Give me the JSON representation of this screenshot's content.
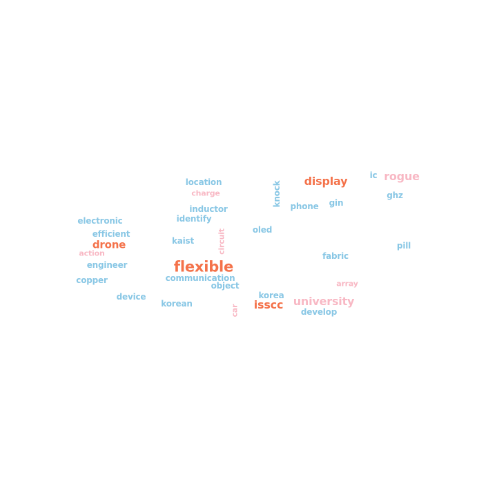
{
  "colors": {
    "orange": "#f4724a",
    "blue": "#89c7e5",
    "pink": "#f8b8c4"
  },
  "words": [
    {
      "text": "flexible",
      "color": "orange"
    },
    {
      "text": "display",
      "color": "orange"
    },
    {
      "text": "drone",
      "color": "orange"
    },
    {
      "text": "isscc",
      "color": "orange"
    },
    {
      "text": "university",
      "color": "pink"
    },
    {
      "text": "rogue",
      "color": "pink"
    },
    {
      "text": "charge",
      "color": "pink"
    },
    {
      "text": "action",
      "color": "pink"
    },
    {
      "text": "circuit",
      "color": "pink"
    },
    {
      "text": "array",
      "color": "pink"
    },
    {
      "text": "car",
      "color": "pink"
    },
    {
      "text": "location",
      "color": "blue"
    },
    {
      "text": "inductor",
      "color": "blue"
    },
    {
      "text": "identify",
      "color": "blue"
    },
    {
      "text": "electronic",
      "color": "blue"
    },
    {
      "text": "efficient",
      "color": "blue"
    },
    {
      "text": "kaist",
      "color": "blue"
    },
    {
      "text": "engineer",
      "color": "blue"
    },
    {
      "text": "copper",
      "color": "blue"
    },
    {
      "text": "communication",
      "color": "blue"
    },
    {
      "text": "object",
      "color": "blue"
    },
    {
      "text": "device",
      "color": "blue"
    },
    {
      "text": "korean",
      "color": "blue"
    },
    {
      "text": "knock",
      "color": "blue"
    },
    {
      "text": "phone",
      "color": "blue"
    },
    {
      "text": "gin",
      "color": "blue"
    },
    {
      "text": "ic",
      "color": "blue"
    },
    {
      "text": "ghz",
      "color": "blue"
    },
    {
      "text": "oled",
      "color": "blue"
    },
    {
      "text": "pill",
      "color": "blue"
    },
    {
      "text": "fabric",
      "color": "blue"
    },
    {
      "text": "korea",
      "color": "blue"
    },
    {
      "text": "develop",
      "color": "blue"
    }
  ]
}
